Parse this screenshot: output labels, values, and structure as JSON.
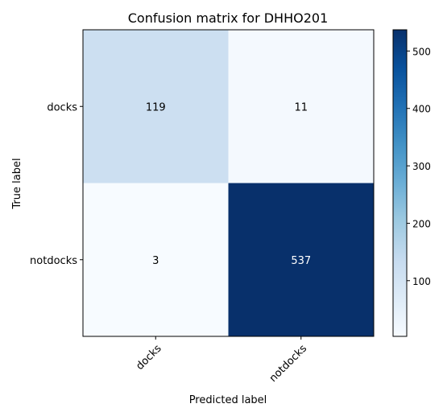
{
  "chart_data": {
    "type": "heatmap",
    "title": "Confusion matrix for DHHO201",
    "xlabel": "Predicted label",
    "ylabel": "True label",
    "x_categories": [
      "docks",
      "notdocks"
    ],
    "y_categories": [
      "docks",
      "notdocks"
    ],
    "values": [
      [
        119,
        11
      ],
      [
        3,
        537
      ]
    ],
    "colorbar": {
      "ticks": [
        100,
        200,
        300,
        400,
        500
      ],
      "range": [
        3,
        537
      ],
      "colormap": "Blues"
    },
    "colors": {
      "cell_low": "#f7fbff",
      "cell_119": "#c6dbef",
      "cell_high": "#08306b",
      "text_dark": "#000000",
      "text_light": "#ffffff"
    }
  }
}
